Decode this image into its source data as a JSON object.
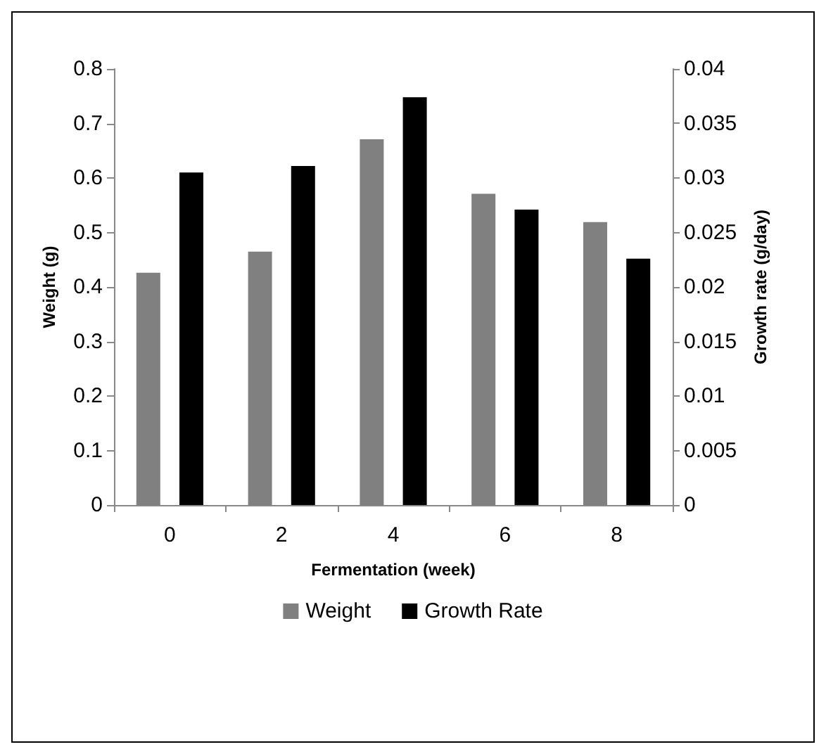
{
  "chart_data": {
    "type": "bar",
    "xlabel": "Fermentation (week)",
    "ylabel": "Weight (g)",
    "y2label": "Growth rate (g/day)",
    "categories": [
      "0",
      "2",
      "4",
      "6",
      "8"
    ],
    "series": [
      {
        "name": "Weight",
        "color": "#808080",
        "values": [
          0.426,
          0.465,
          0.671,
          0.571,
          0.519
        ]
      },
      {
        "name": "Growth Rate",
        "color": "#000000",
        "axis": "y2",
        "values": [
          0.0305,
          0.0311,
          0.0374,
          0.0271,
          0.0226
        ]
      }
    ],
    "ylim": [
      0,
      0.8
    ],
    "yticks": [
      0,
      0.1,
      0.2,
      0.3,
      0.4,
      0.5,
      0.6,
      0.7,
      0.8
    ],
    "y2lim": [
      0,
      0.04
    ],
    "y2ticks": [
      0,
      0.005,
      0.01,
      0.015,
      0.02,
      0.025,
      0.03,
      0.035,
      0.04
    ],
    "grid": false,
    "legend": "bottom"
  }
}
